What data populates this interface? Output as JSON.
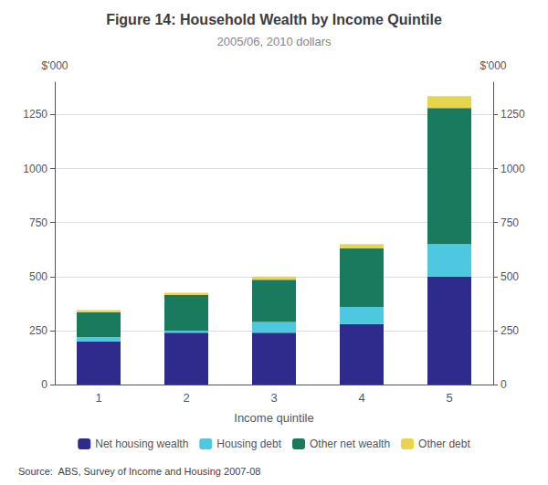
{
  "chart_data": {
    "type": "bar",
    "title": "Figure 14: Household Wealth by Income Quintile",
    "subtitle": "2005/06, 2010 dollars",
    "xlabel": "Income quintile",
    "ylabel": "$'000",
    "y2label": "$'000",
    "source": "Source:  ABS, Survey of Income and Housing 2007-08",
    "categories": [
      "1",
      "2",
      "3",
      "4",
      "5"
    ],
    "series": [
      {
        "name": "Net housing wealth",
        "color": "#2E2B8C",
        "values": [
          200,
          240,
          240,
          280,
          500
        ]
      },
      {
        "name": "Housing debt",
        "color": "#4DC8E0",
        "values": [
          20,
          10,
          50,
          80,
          150
        ]
      },
      {
        "name": "Other net wealth",
        "color": "#1A7A5E",
        "values": [
          115,
          165,
          195,
          270,
          630
        ]
      },
      {
        "name": "Other debt",
        "color": "#E8D44D",
        "values": [
          10,
          10,
          15,
          20,
          55
        ]
      }
    ],
    "stacked": true,
    "ylim": [
      0,
      1400
    ],
    "yticks": [
      0,
      250,
      500,
      750,
      1000,
      1250
    ],
    "y2lim": [
      0,
      1400
    ],
    "y2ticks": [
      0,
      250,
      500,
      750,
      1000,
      1250
    ],
    "grid": true,
    "legend": "bottom"
  }
}
